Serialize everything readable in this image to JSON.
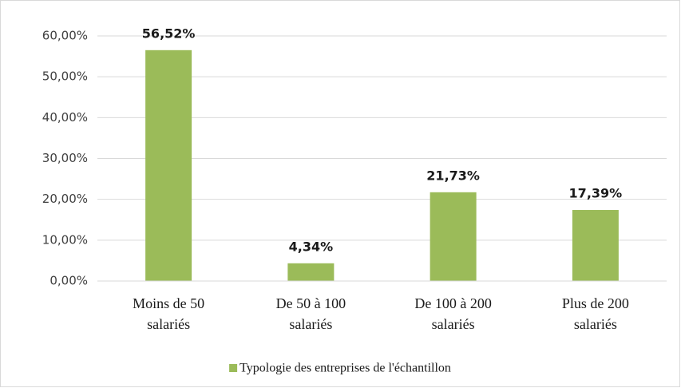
{
  "chart_data": {
    "type": "bar",
    "categories": [
      [
        "Moins de 50",
        "salariés"
      ],
      [
        "De 50 à 100",
        "salariés"
      ],
      [
        "De 100 à 200",
        "salariés"
      ],
      [
        "Plus de 200",
        "salariés"
      ]
    ],
    "series": [
      {
        "name": "Typologie des entreprises de l'échantillon",
        "color": "#9bbb59",
        "values": [
          56.52,
          4.34,
          21.73,
          17.39
        ],
        "value_labels": [
          "56,52%",
          "4,34%",
          "21,73%",
          "17,39%"
        ]
      }
    ],
    "ylim": [
      0,
      60
    ],
    "yticks": [
      {
        "value": 0,
        "label": "0,00%"
      },
      {
        "value": 10,
        "label": "10,00%"
      },
      {
        "value": 20,
        "label": "20,00%"
      },
      {
        "value": 30,
        "label": "30,00%"
      },
      {
        "value": 40,
        "label": "40,00%"
      },
      {
        "value": 50,
        "label": "50,00%"
      },
      {
        "value": 60,
        "label": "60,00%"
      }
    ],
    "grid": true,
    "legend": "bottom"
  }
}
